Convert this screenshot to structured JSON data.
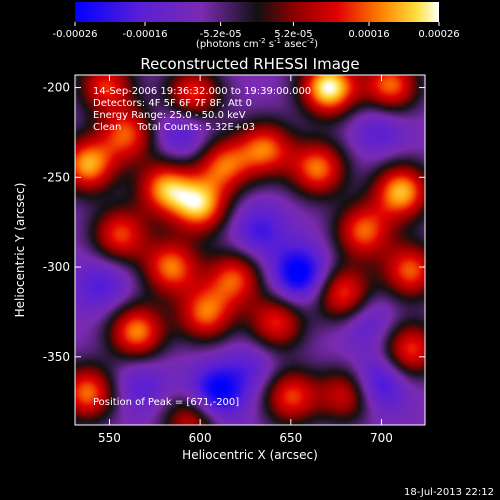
{
  "chart_data": {
    "type": "heatmap",
    "title": "Reconstructed RHESSI Image",
    "xlabel": "Heliocentric X (arcsec)",
    "ylabel": "Heliocentric Y (arcsec)",
    "xlim": [
      531,
      724
    ],
    "ylim": [
      -388,
      -193
    ],
    "x_ticks": [
      "550",
      "600",
      "650",
      "700"
    ],
    "x_tick_values": [
      550,
      600,
      650,
      700
    ],
    "y_ticks": [
      "-200",
      "-250",
      "-300",
      "-350"
    ],
    "y_tick_values": [
      -200,
      -250,
      -300,
      -350
    ],
    "colorbar": {
      "label_main": "(photons cm",
      "label_sup1": "-2",
      "label_mid": " s",
      "label_sup2": "-1",
      "label_end": " asec",
      "label_sup3": "-2",
      "label_close": ")",
      "ticks": [
        "-0.00026",
        "-0.00016",
        "-5.2e-05",
        "5.2e-05",
        "0.00016",
        "0.00026"
      ],
      "tick_values": [
        -0.00026,
        -0.00016,
        -5.2e-05,
        5.2e-05,
        0.00016,
        0.00026
      ],
      "range": [
        -0.00026,
        0.00026
      ]
    },
    "annotations": [
      "14-Sep-2006 19:36:32.000 to 19:39:00.000",
      "Detectors: 4F 5F 6F 7F 8F, Att 0",
      "Energy Range: 25.0 - 50.0 keV",
      "Clean     Total Counts: 5.32E+03"
    ],
    "peak_label": "Position of Peak = [671,-200]",
    "peak": [
      671,
      -200
    ],
    "footer": "18-Jul-2013 22:12",
    "blobs": [
      {
        "x": 671,
        "y": -200,
        "v": 1.0
      },
      {
        "x": 705,
        "y": -199,
        "v": 0.65
      },
      {
        "x": 596,
        "y": -204,
        "v": 0.55
      },
      {
        "x": 548,
        "y": -199,
        "v": 0.5
      },
      {
        "x": 560,
        "y": -226,
        "v": 0.55
      },
      {
        "x": 538,
        "y": -243,
        "v": 0.75
      },
      {
        "x": 581,
        "y": -256,
        "v": 0.7
      },
      {
        "x": 600,
        "y": -266,
        "v": 0.75
      },
      {
        "x": 613,
        "y": -243,
        "v": 0.55
      },
      {
        "x": 636,
        "y": -234,
        "v": 0.6
      },
      {
        "x": 665,
        "y": -245,
        "v": 0.65
      },
      {
        "x": 711,
        "y": -258,
        "v": 0.8
      },
      {
        "x": 690,
        "y": -280,
        "v": 0.6
      },
      {
        "x": 556,
        "y": -282,
        "v": 0.55
      },
      {
        "x": 584,
        "y": -300,
        "v": 0.65
      },
      {
        "x": 619,
        "y": -306,
        "v": 0.55
      },
      {
        "x": 679,
        "y": -315,
        "v": 0.6
      },
      {
        "x": 716,
        "y": -302,
        "v": 0.6
      },
      {
        "x": 565,
        "y": -336,
        "v": 0.7
      },
      {
        "x": 603,
        "y": -326,
        "v": 0.6
      },
      {
        "x": 642,
        "y": -331,
        "v": 0.5
      },
      {
        "x": 716,
        "y": -346,
        "v": 0.55
      },
      {
        "x": 538,
        "y": -370,
        "v": 0.65
      },
      {
        "x": 650,
        "y": -372,
        "v": 0.55
      },
      {
        "x": 681,
        "y": -371,
        "v": 0.45
      },
      {
        "x": 595,
        "y": -386,
        "v": 0.4
      },
      {
        "x": 655,
        "y": -304,
        "v": -0.8
      },
      {
        "x": 609,
        "y": -370,
        "v": -0.75
      },
      {
        "x": 698,
        "y": -365,
        "v": -0.6
      },
      {
        "x": 590,
        "y": -225,
        "v": -0.45
      },
      {
        "x": 632,
        "y": -280,
        "v": -0.45
      },
      {
        "x": 546,
        "y": -310,
        "v": -0.4
      },
      {
        "x": 699,
        "y": -223,
        "v": -0.35
      },
      {
        "x": 567,
        "y": -366,
        "v": -0.35
      },
      {
        "x": 629,
        "y": -356,
        "v": -0.3
      },
      {
        "x": 692,
        "y": -330,
        "v": -0.35
      }
    ]
  }
}
